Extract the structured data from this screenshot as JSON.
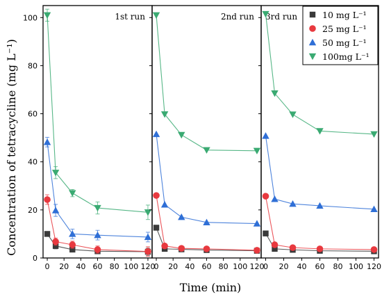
{
  "chart_data": {
    "type": "line",
    "xlabel": "Time (min)",
    "ylabel": "Concentration of tetracycline (mg L⁻¹)",
    "ylim": [
      0,
      105
    ],
    "xlim": [
      -5,
      125
    ],
    "x": [
      0,
      10,
      30,
      60,
      120
    ],
    "xticks": [
      "0",
      "20",
      "40",
      "60",
      "80",
      "100",
      "120"
    ],
    "xtick_values": [
      0,
      20,
      40,
      60,
      80,
      100,
      120
    ],
    "yticks": [
      "0",
      "20",
      "40",
      "60",
      "80",
      "100"
    ],
    "ytick_values": [
      0,
      20,
      40,
      60,
      80,
      100
    ],
    "legend_placement": "top-right",
    "legend": [
      {
        "label": "10 mg L⁻¹",
        "marker": "square",
        "color": "#3a3a3a"
      },
      {
        "label": "25 mg L⁻¹",
        "marker": "circle",
        "color": "#e8393f"
      },
      {
        "label": "50 mg L⁻¹",
        "marker": "triangle-up",
        "color": "#2f6fd6"
      },
      {
        "label": "100mg L⁻¹",
        "marker": "triangle-down",
        "color": "#3aaa72"
      }
    ],
    "panels": [
      {
        "label": "1st run",
        "series": [
          {
            "values": [
              10,
              5,
              3.5,
              2.8,
              2.6
            ],
            "errors": [
              0.8,
              1.2,
              1.0,
              1.0,
              1.5
            ]
          },
          {
            "values": [
              24.3,
              6.8,
              5.5,
              3.5,
              2.7
            ],
            "errors": [
              2.0,
              1.5,
              1.5,
              1.5,
              2.0
            ]
          },
          {
            "values": [
              48.2,
              19.8,
              10,
              9.5,
              8.7
            ],
            "errors": [
              2.0,
              2.5,
              2.0,
              2.0,
              2.0
            ]
          },
          {
            "values": [
              101,
              35.5,
              27,
              20.8,
              19
            ],
            "errors": [
              2.5,
              2.5,
              1.5,
              2.5,
              3.0
            ]
          }
        ]
      },
      {
        "label": "2nd run",
        "series": [
          {
            "values": [
              12.6,
              3.8,
              3.6,
              3.3,
              3.0
            ],
            "errors": [
              0,
              0,
              0,
              0,
              0
            ]
          },
          {
            "values": [
              26,
              5,
              4,
              3.8,
              3.2
            ],
            "errors": [
              0,
              0,
              0,
              0,
              0
            ]
          },
          {
            "values": [
              51.5,
              22.2,
              17,
              14.8,
              14.3
            ],
            "errors": [
              0,
              0,
              0,
              0,
              0
            ]
          },
          {
            "values": [
              101,
              59.8,
              51.2,
              44.9,
              44.6
            ],
            "errors": [
              0,
              0,
              0,
              0,
              0
            ]
          }
        ]
      },
      {
        "label": "3rd run",
        "series": [
          {
            "values": [
              10.2,
              3.8,
              3.4,
              3.0,
              2.8
            ],
            "errors": [
              0,
              0,
              0,
              0,
              0
            ]
          },
          {
            "values": [
              25.7,
              5.5,
              4.3,
              3.8,
              3.5
            ],
            "errors": [
              0,
              0,
              0,
              0,
              0
            ]
          },
          {
            "values": [
              50.8,
              24.5,
              22.5,
              21.7,
              20.3
            ],
            "errors": [
              0,
              0,
              0,
              0,
              0
            ]
          },
          {
            "values": [
              101.5,
              68.5,
              59.7,
              52.8,
              51.5
            ],
            "errors": [
              0,
              0,
              0,
              0,
              0
            ]
          }
        ]
      }
    ]
  }
}
